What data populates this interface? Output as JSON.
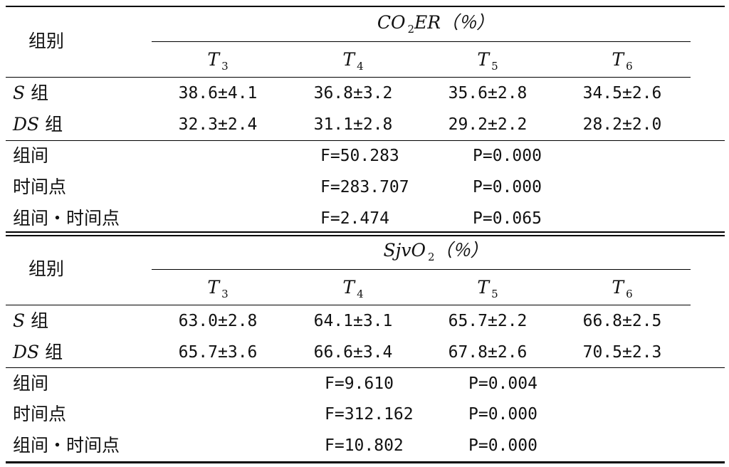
{
  "table1": {
    "group_header": "组别",
    "param_main": "CO",
    "param_sub": "2",
    "param_suffix": "ER（％）",
    "times": [
      {
        "t": "T",
        "n": "3"
      },
      {
        "t": "T",
        "n": "4"
      },
      {
        "t": "T",
        "n": "5"
      },
      {
        "t": "T",
        "n": "6"
      }
    ],
    "rows": [
      {
        "g": "S",
        "zu": "组",
        "values": [
          "38.6±4.1",
          "36.8±3.2",
          "35.6±2.8",
          "34.5±2.6"
        ]
      },
      {
        "g": "DS",
        "zu": "组",
        "values": [
          "32.3±2.4",
          "31.1±2.8",
          "29.2±2.2",
          "28.2±2.0"
        ]
      }
    ],
    "stats": [
      {
        "label": "组间",
        "f": "F=50.283",
        "p": "P=0.000"
      },
      {
        "label": "时间点",
        "f": "F=283.707",
        "p": "P=0.000"
      },
      {
        "label": "组间・时间点",
        "f": "F=2.474",
        "p": "P=0.065"
      }
    ]
  },
  "table2": {
    "group_header": "组别",
    "param_main": "SjvO",
    "param_sub": "2",
    "param_suffix": "（％）",
    "times": [
      {
        "t": "T",
        "n": "3"
      },
      {
        "t": "T",
        "n": "4"
      },
      {
        "t": "T",
        "n": "5"
      },
      {
        "t": "T",
        "n": "6"
      }
    ],
    "rows": [
      {
        "g": "S",
        "zu": "组",
        "values": [
          "63.0±2.8",
          "64.1±3.1",
          "65.7±2.2",
          "66.8±2.5"
        ]
      },
      {
        "g": "DS",
        "zu": "组",
        "values": [
          "65.7±3.6",
          "66.6±3.4",
          "67.8±2.6",
          "70.5±2.3"
        ]
      }
    ],
    "stats": [
      {
        "label": "组间",
        "f": "F=9.610",
        "p": "P=0.004"
      },
      {
        "label": "时间点",
        "f": "F=312.162",
        "p": "P=0.000"
      },
      {
        "label": "组间・时间点",
        "f": "F=10.802",
        "p": "P=0.000"
      }
    ]
  }
}
